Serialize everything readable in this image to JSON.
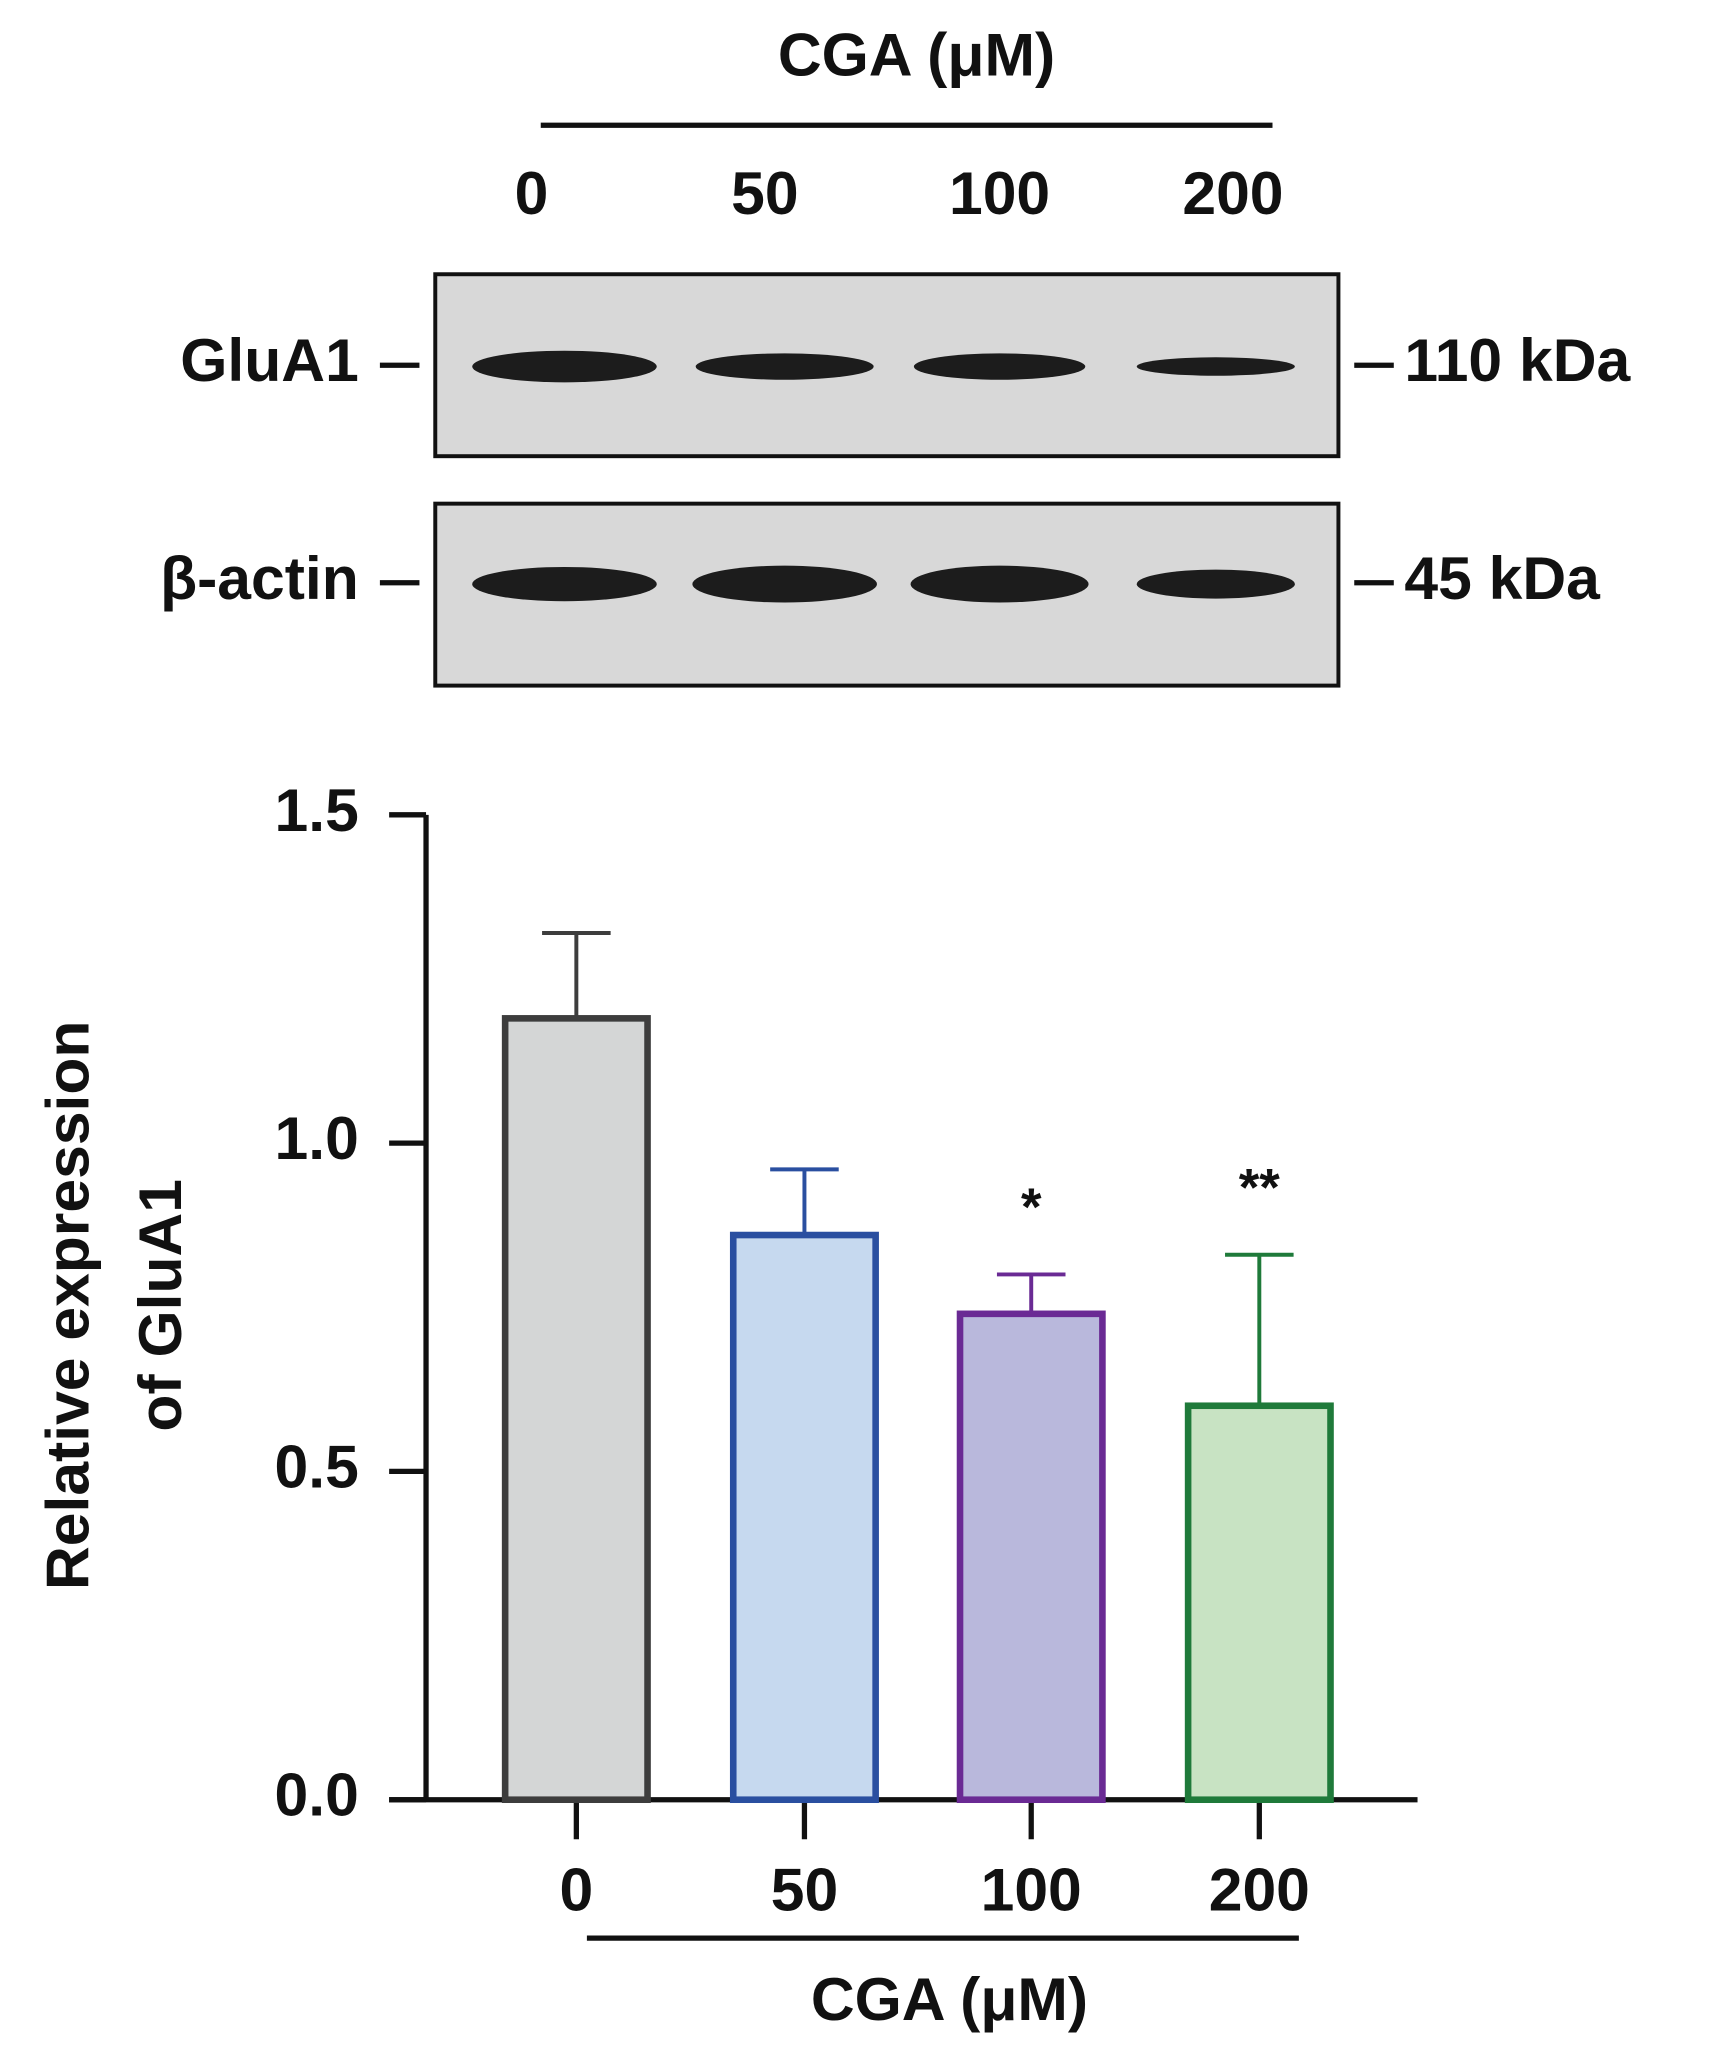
{
  "blot": {
    "header": "CGA (μM)",
    "lanes": [
      "0",
      "50",
      "100",
      "200"
    ],
    "rows": [
      {
        "label": "GluA1",
        "marker": "110 kDa"
      },
      {
        "label": "β-actin",
        "marker": "45 kDa"
      }
    ]
  },
  "chart_data": {
    "type": "bar",
    "categories": [
      "0",
      "50",
      "100",
      "200"
    ],
    "values": [
      1.19,
      0.86,
      0.74,
      0.6
    ],
    "errors": [
      0.13,
      0.1,
      0.06,
      0.23
    ],
    "significance": [
      null,
      null,
      "*",
      "**"
    ],
    "colors": [
      "#d4d6d6",
      "#c6d9ef",
      "#b9b8dc",
      "#c8e3c3"
    ],
    "edge_colors": [
      "#3d3d3d",
      "#2a4fa0",
      "#6a2a94",
      "#1f7a3a"
    ],
    "ylabel": [
      "Relative expression",
      "of GluA1"
    ],
    "xlabel": "CGA (μM)",
    "ylim": [
      0,
      1.5
    ],
    "yticks": [
      {
        "value": 0,
        "label": "0.0"
      },
      0.5,
      {
        "value": 1,
        "label": "1.0"
      },
      1.5
    ]
  }
}
